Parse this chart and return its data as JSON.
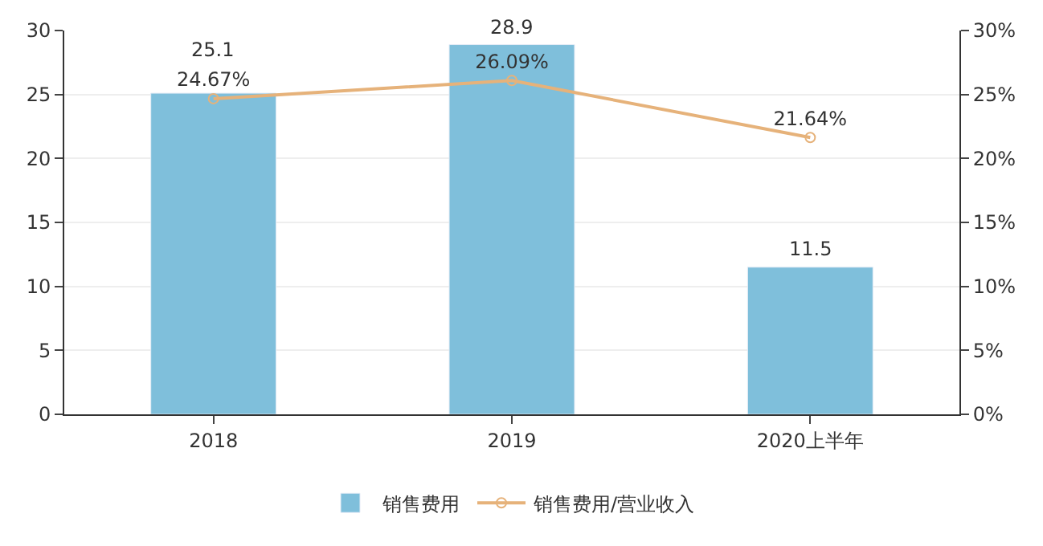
{
  "chart_data": {
    "type": "bar",
    "categories": [
      "2018",
      "2019",
      "2020上半年"
    ],
    "series": [
      {
        "name": "销售费用",
        "color": "#7fbfdb",
        "values": [
          25.1,
          28.9,
          11.5
        ],
        "value_labels": [
          "25.1",
          "28.9",
          "11.5"
        ]
      },
      {
        "name": "销售费用/营业收入",
        "type": "line",
        "axis": "y2",
        "color": "#e6b27a",
        "marker": "circle",
        "values": [
          24.67,
          26.09,
          21.64
        ],
        "value_labels": [
          "24.67%",
          "26.09%",
          "21.64%"
        ]
      }
    ],
    "ylim": [
      0,
      30
    ],
    "yticks": [
      0,
      5,
      10,
      15,
      20,
      25,
      30
    ],
    "y2lim": [
      0,
      30
    ],
    "y2ticks": [
      {
        "value": 0,
        "label": "0%"
      },
      {
        "value": 5,
        "label": "5%"
      },
      {
        "value": 10,
        "label": "10%"
      },
      {
        "value": 15,
        "label": "15%"
      },
      {
        "value": 20,
        "label": "20%"
      },
      {
        "value": 25,
        "label": "25%"
      },
      {
        "value": 30,
        "label": "30%"
      }
    ],
    "grid": "y",
    "legend": "bottom"
  }
}
